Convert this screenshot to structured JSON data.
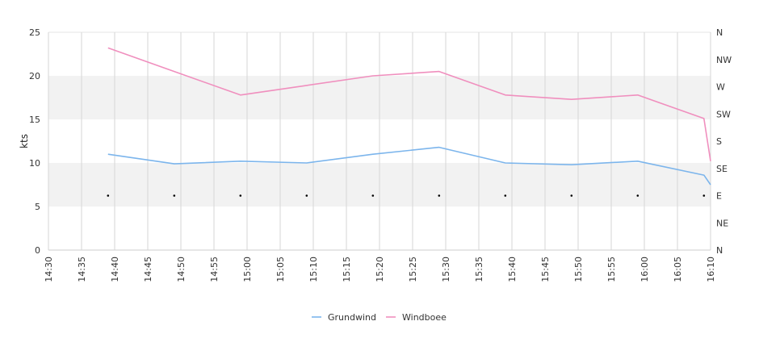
{
  "chart_data": {
    "type": "line",
    "ylabel": "kts",
    "ylim": [
      0,
      25
    ],
    "y_ticks": [
      "0",
      "5",
      "10",
      "15",
      "20",
      "25"
    ],
    "y2_ticks": [
      "N",
      "NE",
      "E",
      "SE",
      "S",
      "SW",
      "W",
      "NW",
      "N"
    ],
    "x_ticks": [
      "14:30",
      "14:35",
      "14:40",
      "14:45",
      "14:50",
      "14:55",
      "15:00",
      "15:05",
      "15:10",
      "15:15",
      "15:20",
      "15:25",
      "15:30",
      "15:35",
      "15:40",
      "15:45",
      "15:50",
      "15:55",
      "16:00",
      "16:05",
      "16:10"
    ],
    "xlim": [
      "14:30",
      "16:10"
    ],
    "bands": [
      [
        5,
        10
      ],
      [
        15,
        20
      ]
    ],
    "grid": true,
    "legend_position": "bottom-center",
    "series": [
      {
        "name": "Grundwind",
        "color": "#7cb5ec",
        "x": [
          "14:39",
          "14:49",
          "14:59",
          "15:09",
          "15:19",
          "15:29",
          "15:39",
          "15:49",
          "15:59",
          "16:09",
          "16:10"
        ],
        "values": [
          11.0,
          9.9,
          10.2,
          10.0,
          11.0,
          11.8,
          10.0,
          9.8,
          10.2,
          8.6,
          7.5
        ]
      },
      {
        "name": "Windboee",
        "color": "#f08fbe",
        "x": [
          "14:39",
          "14:49",
          "14:59",
          "15:09",
          "15:19",
          "15:29",
          "15:39",
          "15:49",
          "15:59",
          "16:09",
          "16:10"
        ],
        "values": [
          23.2,
          20.5,
          17.8,
          18.9,
          20.0,
          20.5,
          17.8,
          17.3,
          17.8,
          15.1,
          10.2
        ]
      }
    ],
    "direction_markers": {
      "x": [
        "14:39",
        "14:49",
        "14:59",
        "15:09",
        "15:19",
        "15:29",
        "15:39",
        "15:49",
        "15:59",
        "16:09"
      ],
      "values": [
        "E",
        "E",
        "E",
        "E",
        "E",
        "E",
        "E",
        "E",
        "E",
        "E"
      ]
    }
  }
}
